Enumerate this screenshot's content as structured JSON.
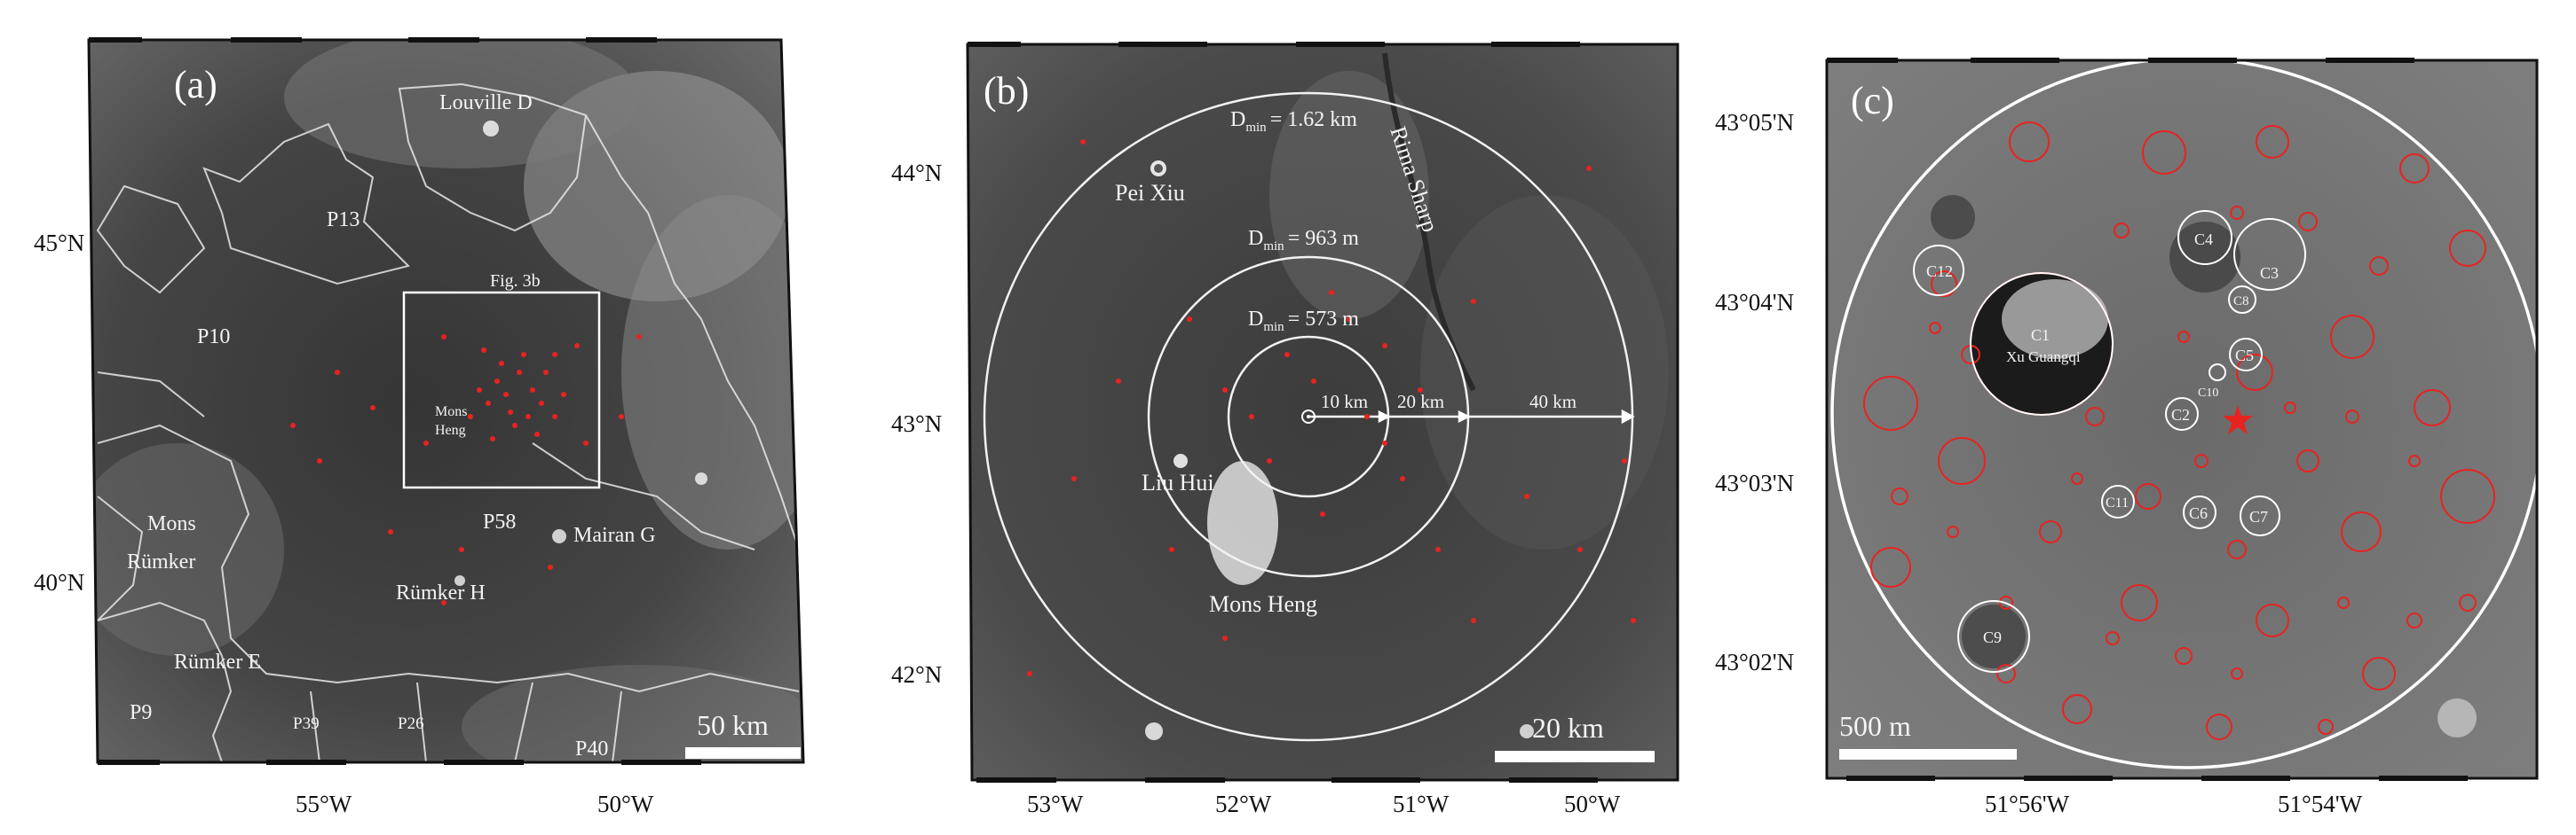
{
  "panels": [
    {
      "panel_label": "(a)",
      "lat_ticks": [
        "45°N",
        "40°N"
      ],
      "lon_ticks": [
        "55°W",
        "50°W"
      ],
      "region_labels": [
        "Louville D",
        "P13",
        "P10",
        "Mons",
        "Rümker",
        "Rümker E",
        "P9",
        "P39",
        "P26",
        "P40",
        "P58",
        "Mairan G",
        "Rümker H"
      ],
      "box_label": "Fig. 3b",
      "feature_label": [
        "Mons",
        "Heng"
      ],
      "scale_bar": "50 km"
    },
    {
      "panel_label": "(b)",
      "lat_ticks": [
        "44°N",
        "43°N",
        "42°N"
      ],
      "lon_ticks": [
        "53°W",
        "52°W",
        "51°W",
        "50°W"
      ],
      "features": [
        "Pei Xiu",
        "Liu Hui",
        "Mons Heng",
        "Rima Sharp"
      ],
      "rings": [
        {
          "radius_label": "10 km",
          "dmin": "= 573 m"
        },
        {
          "radius_label": "20 km",
          "dmin": "= 963 m"
        },
        {
          "radius_label": "40 km",
          "dmin": "= 1.62 km"
        }
      ],
      "dmin_symbol": "D",
      "dmin_sub": "min",
      "scale_bar": "20 km"
    },
    {
      "panel_label": "(c)",
      "lat_ticks": [
        "43°05'N",
        "43°04'N",
        "43°03'N",
        "43°02'N"
      ],
      "lon_ticks": [
        "51°56'W",
        "51°54'W"
      ],
      "craters": [
        "C1",
        "C2",
        "C3",
        "C4",
        "C5",
        "C6",
        "C7",
        "C8",
        "C9",
        "C10",
        "C11",
        "C12"
      ],
      "c1_name": "Xu Guangqi",
      "scale_bar": "500 m"
    }
  ],
  "colors": {
    "crater_marker": "#e8231f",
    "outline": "#ffffff",
    "frame": "#111111",
    "surface_dark": "#3a3a3a"
  }
}
